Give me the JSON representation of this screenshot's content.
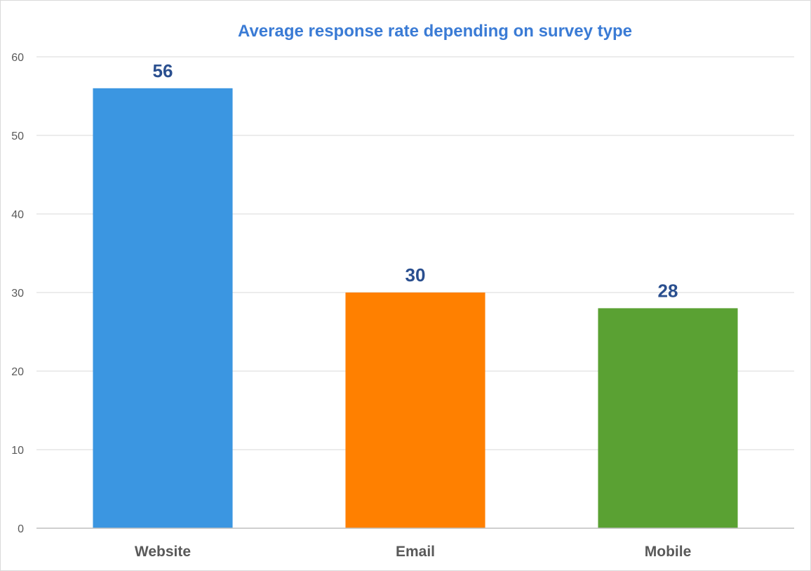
{
  "chart_data": {
    "type": "bar",
    "title": "Average response rate depending on survey type",
    "xlabel": "",
    "ylabel": "",
    "categories": [
      "Website",
      "Email",
      "Mobile"
    ],
    "values": [
      56,
      30,
      28
    ],
    "data_labels": [
      "56",
      "30",
      "28"
    ],
    "colors": [
      "#3b96e1",
      "#ff8000",
      "#5aa133"
    ],
    "ylim": [
      0,
      60
    ],
    "yticks": [
      0,
      10,
      20,
      30,
      40,
      50,
      60
    ],
    "ytick_labels": [
      "0",
      "10",
      "20",
      "30",
      "40",
      "50",
      "60"
    ],
    "grid": true,
    "legend": "none"
  }
}
